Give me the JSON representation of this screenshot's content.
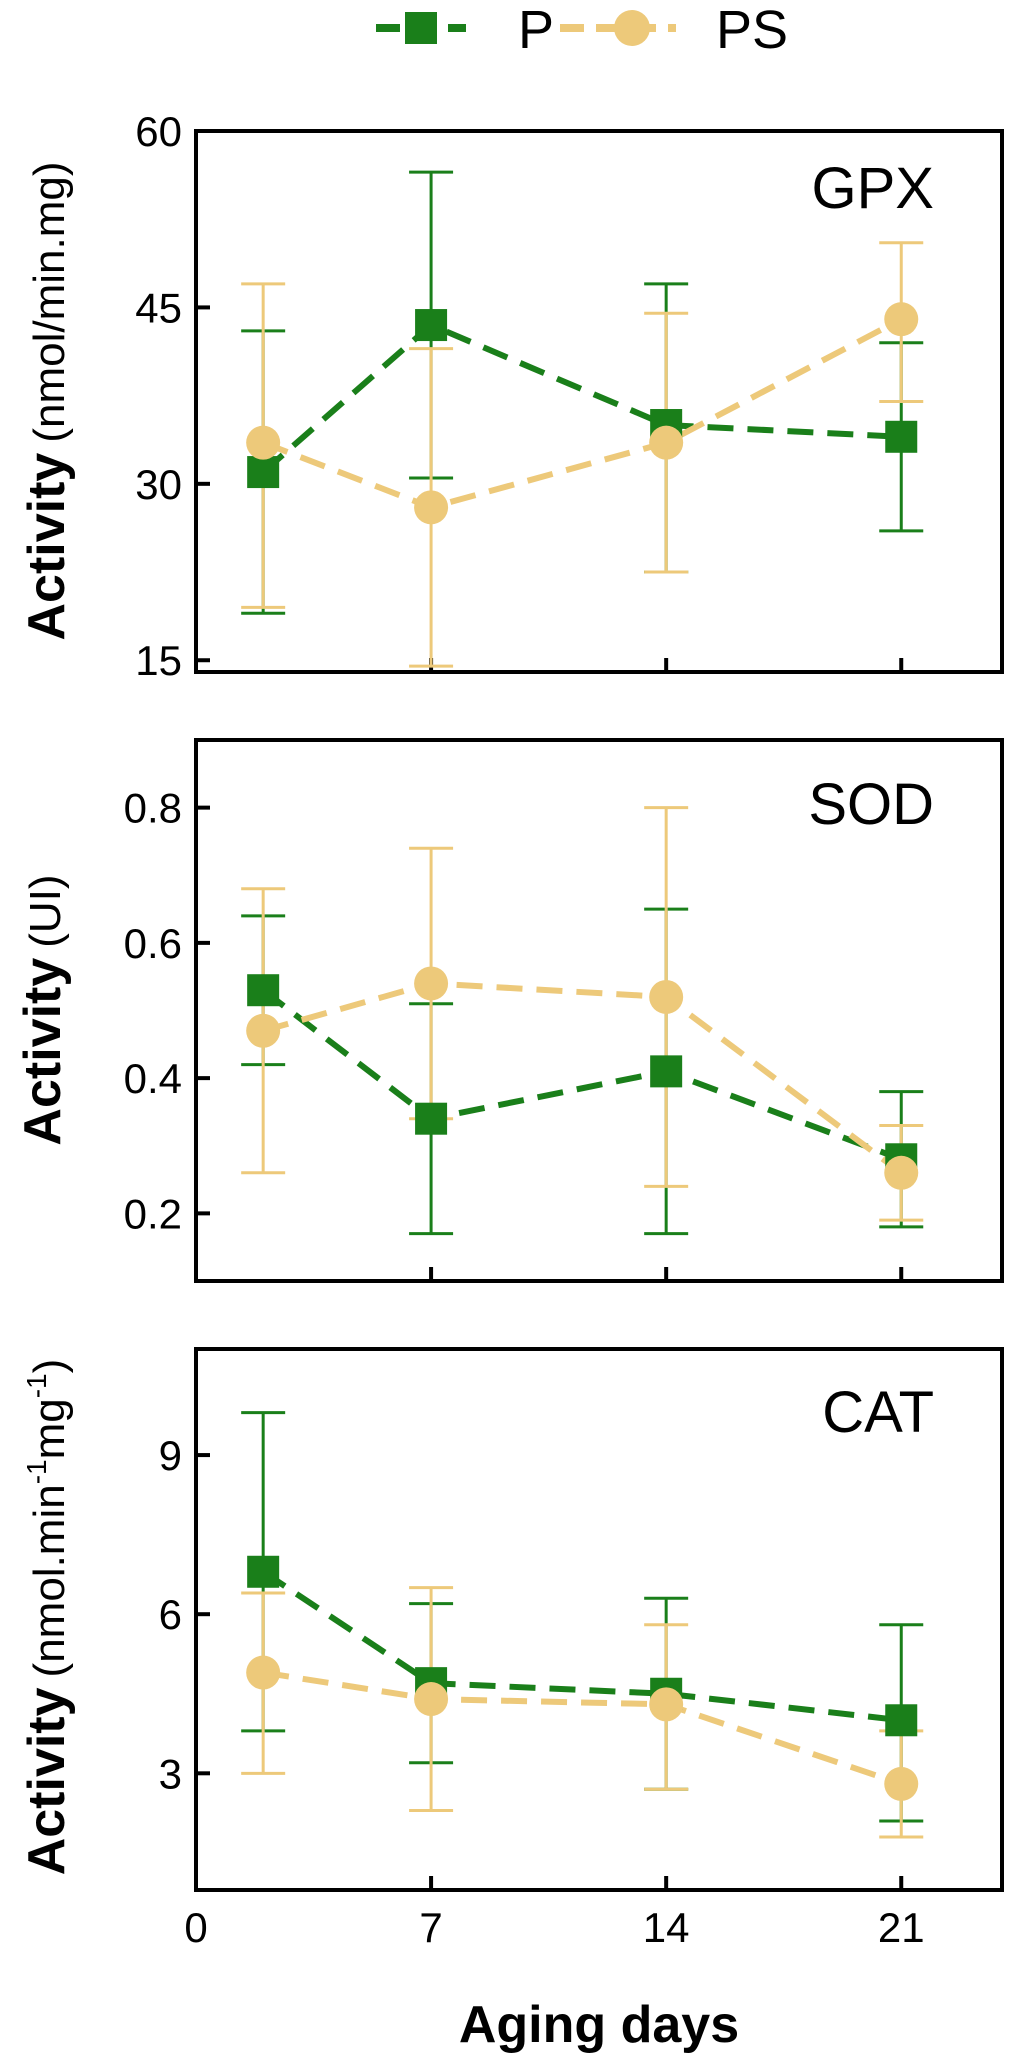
{
  "chart_data": {
    "type": "line",
    "legend": [
      {
        "name": "P",
        "color": "#1a7f1a",
        "marker": "square"
      },
      {
        "name": "PS",
        "color": "#edc97a",
        "marker": "circle"
      }
    ],
    "xlabel": "Aging days",
    "xlim": [
      0,
      24
    ],
    "xticks": [
      0,
      7,
      14,
      21
    ],
    "x": [
      2,
      7,
      14,
      21
    ],
    "panels": [
      {
        "title": "GPX",
        "ylabel_bold": "Activity",
        "ylabel_unit": "(nmol/min.mg)",
        "ylim": [
          14,
          60
        ],
        "yticks": [
          15,
          30,
          45,
          60
        ],
        "series": [
          {
            "name": "P",
            "values": [
              31,
              43.5,
              35,
              34
            ],
            "err_low": [
              19,
              30.5,
              22.5,
              26
            ],
            "err_high": [
              43,
              56.5,
              47,
              42
            ]
          },
          {
            "name": "PS",
            "values": [
              33.5,
              28,
              33.5,
              44
            ],
            "err_low": [
              19.5,
              14.5,
              22.5,
              37
            ],
            "err_high": [
              47,
              41.5,
              44.5,
              50.5
            ]
          }
        ]
      },
      {
        "title": "SOD",
        "ylabel_bold": "Activity",
        "ylabel_unit": "(UI)",
        "ylim": [
          0.1,
          0.9
        ],
        "yticks": [
          0.2,
          0.4,
          0.6,
          0.8
        ],
        "series": [
          {
            "name": "P",
            "values": [
              0.53,
              0.34,
              0.41,
              0.28
            ],
            "err_low": [
              0.42,
              0.17,
              0.17,
              0.18
            ],
            "err_high": [
              0.64,
              0.51,
              0.65,
              0.38
            ]
          },
          {
            "name": "PS",
            "values": [
              0.47,
              0.54,
              0.52,
              0.26
            ],
            "err_low": [
              0.26,
              0.34,
              0.24,
              0.19
            ],
            "err_high": [
              0.68,
              0.74,
              0.8,
              0.33
            ]
          }
        ]
      },
      {
        "title": "CAT",
        "ylabel_bold": "Activity",
        "ylabel_unit": "(nmol.min",
        "ylabel_sup1": "-1",
        "ylabel_mid": "mg",
        "ylabel_sup2": "-1",
        "ylabel_end": ")",
        "ylim": [
          0.8,
          11
        ],
        "yticks": [
          3,
          6,
          9
        ],
        "series": [
          {
            "name": "P",
            "values": [
              6.8,
              4.7,
              4.5,
              4.0
            ],
            "err_low": [
              3.8,
              3.2,
              2.7,
              2.1
            ],
            "err_high": [
              9.8,
              6.2,
              6.3,
              5.8
            ]
          },
          {
            "name": "PS",
            "values": [
              4.9,
              4.4,
              4.3,
              2.8
            ],
            "err_low": [
              3.0,
              2.3,
              2.7,
              1.8
            ],
            "err_high": [
              6.4,
              6.5,
              5.8,
              3.8
            ]
          }
        ]
      }
    ]
  }
}
